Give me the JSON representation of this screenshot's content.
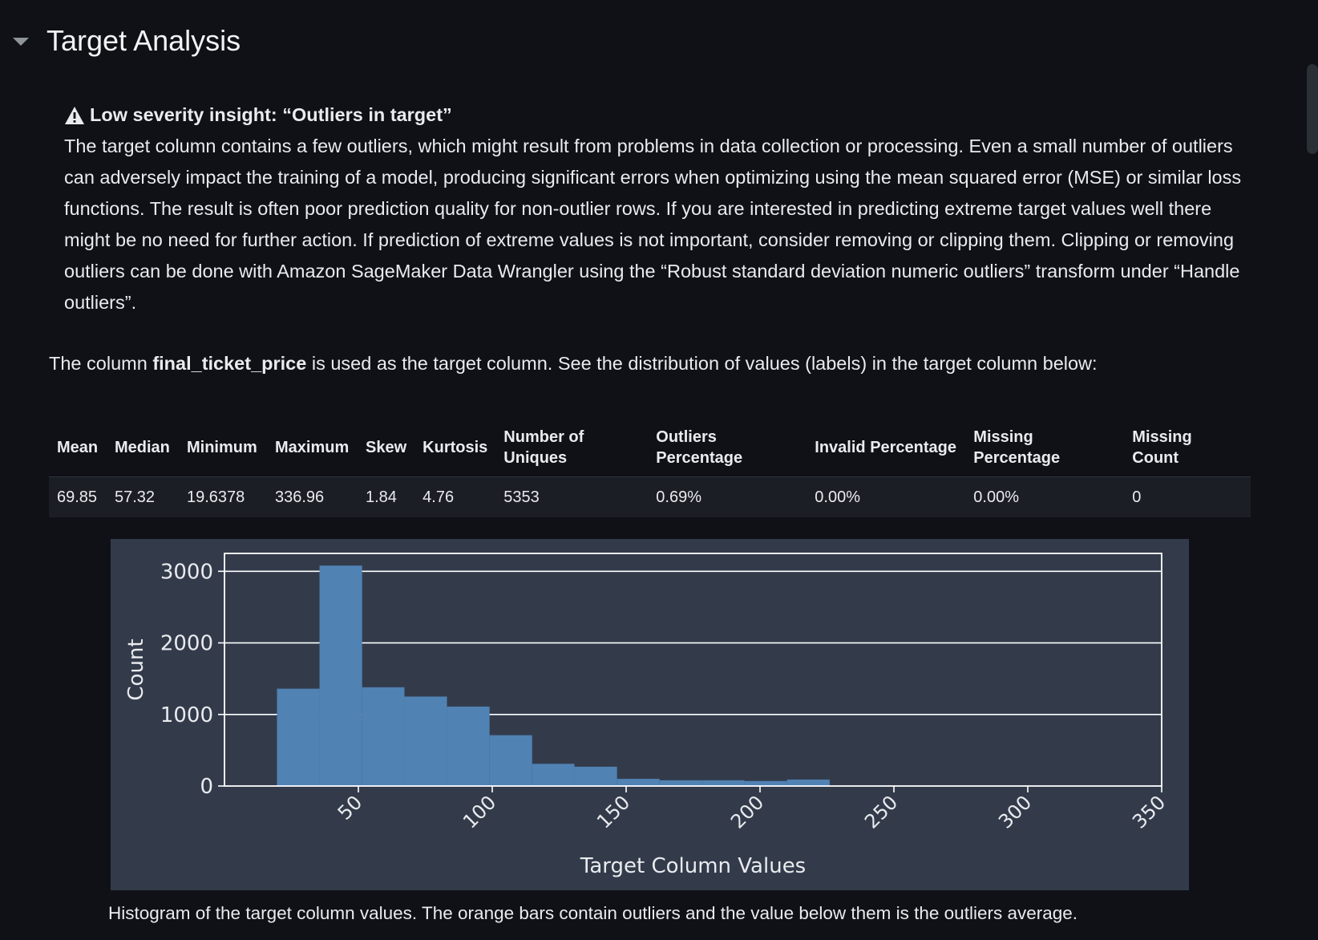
{
  "section": {
    "title": "Target Analysis"
  },
  "insight": {
    "icon": "warning-icon",
    "title": "Low severity insight: “Outliers in target”",
    "body": "The target column contains a few outliers, which might result from problems in data collection or processing. Even a small number of outliers can adversely impact the training of a model, producing significant errors when optimizing using the mean squared error (MSE) or similar loss functions. The result is often poor prediction quality for non-outlier rows. If you are interested in predicting extreme target values well there might be no need for further action. If prediction of extreme values is not important, consider removing or clipping them. Clipping or removing outliers can be done with Amazon SageMaker Data Wrangler using the “Robust standard deviation numeric outliers” transform under “Handle outliers”."
  },
  "intro": {
    "prefix": "The column ",
    "column": "final_ticket_price",
    "suffix": " is used as the target column. See the distribution of values (labels) in the target column below:"
  },
  "stats_table": {
    "headers": [
      "Mean",
      "Median",
      "Minimum",
      "Maximum",
      "Skew",
      "Kurtosis",
      "Number of Uniques",
      "Outliers Percentage",
      "Invalid Percentage",
      "Missing Percentage",
      "Missing Count"
    ],
    "row": [
      "69.85",
      "57.32",
      "19.6378",
      "336.96",
      "1.84",
      "4.76",
      "5353",
      "0.69%",
      "0.00%",
      "0.00%",
      "0"
    ]
  },
  "chart_data": {
    "type": "bar",
    "title": "",
    "xlabel": "Target Column Values",
    "ylabel": "Count",
    "xlim": [
      0,
      350
    ],
    "ylim": [
      0,
      3250
    ],
    "xticks": [
      50,
      100,
      150,
      200,
      250,
      300,
      350
    ],
    "yticks": [
      0,
      1000,
      2000,
      3000
    ],
    "grid": "horizontal",
    "bar_color": "#5082b4",
    "bins": [
      {
        "start": 19.6,
        "end": 35.5,
        "count": 1360
      },
      {
        "start": 35.5,
        "end": 51.4,
        "count": 3080
      },
      {
        "start": 51.4,
        "end": 67.2,
        "count": 1380
      },
      {
        "start": 67.2,
        "end": 83.1,
        "count": 1250
      },
      {
        "start": 83.1,
        "end": 99.0,
        "count": 1110
      },
      {
        "start": 99.0,
        "end": 114.9,
        "count": 710
      },
      {
        "start": 114.9,
        "end": 130.7,
        "count": 310
      },
      {
        "start": 130.7,
        "end": 146.6,
        "count": 270
      },
      {
        "start": 146.6,
        "end": 162.5,
        "count": 100
      },
      {
        "start": 162.5,
        "end": 178.4,
        "count": 80
      },
      {
        "start": 178.4,
        "end": 194.2,
        "count": 80
      },
      {
        "start": 194.2,
        "end": 210.1,
        "count": 70
      },
      {
        "start": 210.1,
        "end": 226.0,
        "count": 90
      }
    ]
  },
  "caption": "Histogram of the target column values. The orange bars contain outliers and the value below them is the outliers average."
}
